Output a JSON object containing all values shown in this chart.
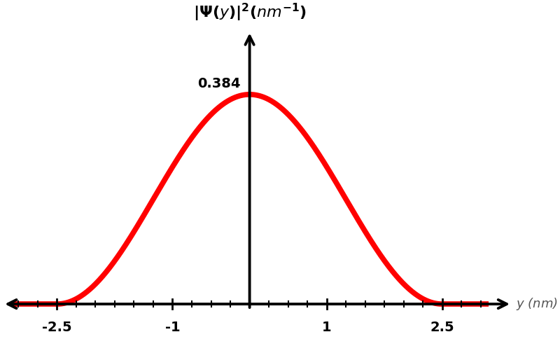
{
  "peak_value": 0.384,
  "L": 2.5,
  "curve_color": "#FF0000",
  "curve_linewidth": 5.5,
  "axis_linewidth": 2.8,
  "background_color": "#ffffff",
  "xlim": [
    -3.2,
    3.4
  ],
  "ylim": [
    -0.055,
    0.5
  ],
  "xlabel": "y (nm)",
  "peak_label": "0.384",
  "x_ticks_major": [
    -2.5,
    -1,
    1,
    2.5
  ],
  "x_ticks_minor_step": 0.25,
  "x_ticks_minor_min": -3.0,
  "x_ticks_minor_max": 3.0
}
